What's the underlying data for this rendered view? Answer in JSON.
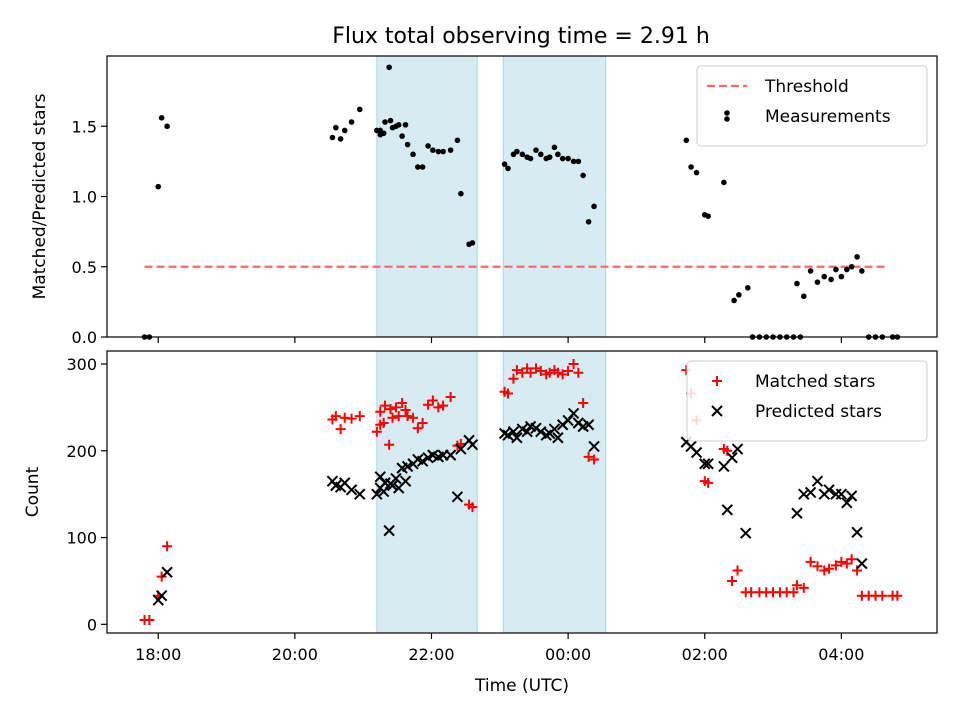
{
  "title": "Flux total observing time = 2.91 h",
  "chart_data": [
    {
      "type": "scatter",
      "ylabel": "Matched/Predicted stars",
      "xlabel": "",
      "x_unit": "hours since 00:00 UTC (date axis)",
      "xlim": [
        -6.75,
        5.4
      ],
      "ylim": [
        0,
        2.0
      ],
      "yticks": [
        0.0,
        0.5,
        1.0,
        1.5
      ],
      "ytick_labels": [
        "0.0",
        "0.5",
        "1.0",
        "1.5"
      ],
      "grid": false,
      "legend_position": "top-right",
      "shaded_ranges": [
        [
          -2.8,
          -1.33
        ],
        [
          -0.95,
          0.55
        ]
      ],
      "threshold": {
        "name": "Threshold",
        "value": 0.5,
        "x_range": [
          -6.2,
          4.65
        ],
        "color": "#f46d6d"
      },
      "series": [
        {
          "name": "Measurements",
          "color": "#000000",
          "points": [
            [
              -6.2,
              0.0
            ],
            [
              -6.13,
              0.0
            ],
            [
              -6.0,
              1.07
            ],
            [
              -5.95,
              1.56
            ],
            [
              -5.87,
              1.5
            ],
            [
              -3.45,
              1.42
            ],
            [
              -3.4,
              1.49
            ],
            [
              -3.33,
              1.41
            ],
            [
              -3.27,
              1.47
            ],
            [
              -3.17,
              1.53
            ],
            [
              -3.05,
              1.62
            ],
            [
              -2.8,
              1.47
            ],
            [
              -2.75,
              1.47
            ],
            [
              -2.7,
              1.45
            ],
            [
              -2.62,
              1.92
            ],
            [
              -2.57,
              1.49
            ],
            [
              -2.48,
              1.51
            ],
            [
              -2.38,
              1.51
            ],
            [
              -2.75,
              1.44
            ],
            [
              -2.68,
              1.53
            ],
            [
              -2.6,
              1.54
            ],
            [
              -2.52,
              1.5
            ],
            [
              -2.43,
              1.43
            ],
            [
              -2.35,
              1.37
            ],
            [
              -2.27,
              1.3
            ],
            [
              -2.2,
              1.21
            ],
            [
              -2.13,
              1.21
            ],
            [
              -2.05,
              1.36
            ],
            [
              -1.98,
              1.33
            ],
            [
              -1.9,
              1.32
            ],
            [
              -1.83,
              1.32
            ],
            [
              -1.72,
              1.33
            ],
            [
              -1.62,
              1.4
            ],
            [
              -1.57,
              1.02
            ],
            [
              -1.45,
              0.66
            ],
            [
              -1.4,
              0.67
            ],
            [
              -0.93,
              1.23
            ],
            [
              -0.88,
              1.2
            ],
            [
              -0.8,
              1.3
            ],
            [
              -0.75,
              1.32
            ],
            [
              -0.67,
              1.3
            ],
            [
              -0.6,
              1.28
            ],
            [
              -0.55,
              1.27
            ],
            [
              -0.47,
              1.33
            ],
            [
              -0.4,
              1.3
            ],
            [
              -0.32,
              1.27
            ],
            [
              -0.27,
              1.28
            ],
            [
              -0.2,
              1.35
            ],
            [
              -0.15,
              1.3
            ],
            [
              -0.08,
              1.27
            ],
            [
              0.0,
              1.27
            ],
            [
              0.08,
              1.25
            ],
            [
              0.15,
              1.25
            ],
            [
              0.22,
              1.15
            ],
            [
              0.3,
              0.82
            ],
            [
              0.38,
              0.93
            ],
            [
              1.73,
              1.4
            ],
            [
              1.8,
              1.21
            ],
            [
              1.88,
              1.17
            ],
            [
              2.0,
              0.87
            ],
            [
              2.05,
              0.86
            ],
            [
              2.28,
              1.1
            ],
            [
              2.43,
              0.26
            ],
            [
              2.5,
              0.3
            ],
            [
              2.63,
              0.35
            ],
            [
              2.7,
              0.0
            ],
            [
              2.8,
              0.0
            ],
            [
              2.9,
              0.0
            ],
            [
              3.0,
              0.0
            ],
            [
              3.1,
              0.0
            ],
            [
              3.2,
              0.0
            ],
            [
              3.3,
              0.0
            ],
            [
              3.4,
              0.0
            ],
            [
              3.35,
              0.38
            ],
            [
              3.45,
              0.29
            ],
            [
              3.55,
              0.47
            ],
            [
              3.65,
              0.39
            ],
            [
              3.75,
              0.43
            ],
            [
              3.85,
              0.41
            ],
            [
              3.92,
              0.48
            ],
            [
              4.0,
              0.43
            ],
            [
              4.08,
              0.48
            ],
            [
              4.15,
              0.5
            ],
            [
              4.23,
              0.57
            ],
            [
              4.3,
              0.47
            ],
            [
              4.4,
              0.0
            ],
            [
              4.5,
              0.0
            ],
            [
              4.6,
              0.0
            ],
            [
              4.75,
              0.0
            ],
            [
              4.82,
              0.0
            ]
          ]
        }
      ]
    },
    {
      "type": "scatter",
      "ylabel": "Count",
      "xlabel": "Time (UTC)",
      "x_unit": "hours since 00:00 UTC (date axis)",
      "xlim": [
        -6.75,
        5.4
      ],
      "ylim": [
        -10,
        315
      ],
      "yticks": [
        0,
        100,
        200,
        300
      ],
      "ytick_labels": [
        "0",
        "100",
        "200",
        "300"
      ],
      "xticks": [
        -6,
        -4,
        -2,
        0,
        2,
        4
      ],
      "xtick_labels": [
        "18:00",
        "20:00",
        "22:00",
        "00:00",
        "02:00",
        "04:00"
      ],
      "grid": false,
      "legend_position": "top-right",
      "shaded_ranges": [
        [
          -2.8,
          -1.33
        ],
        [
          -0.95,
          0.55
        ]
      ],
      "series": [
        {
          "name": "Matched stars",
          "marker": "plus",
          "color": "#ff0000",
          "points": [
            [
              -6.2,
              5
            ],
            [
              -6.13,
              5
            ],
            [
              -6.0,
              33
            ],
            [
              -5.95,
              55
            ],
            [
              -5.87,
              90
            ],
            [
              -3.45,
              236
            ],
            [
              -3.4,
              240
            ],
            [
              -3.33,
              225
            ],
            [
              -3.27,
              238
            ],
            [
              -3.17,
              237
            ],
            [
              -3.05,
              240
            ],
            [
              -2.8,
              222
            ],
            [
              -2.75,
              230
            ],
            [
              -2.7,
              232
            ],
            [
              -2.62,
              207
            ],
            [
              -2.57,
              238
            ],
            [
              -2.48,
              240
            ],
            [
              -2.38,
              247
            ],
            [
              -2.75,
              245
            ],
            [
              -2.68,
              252
            ],
            [
              -2.6,
              248
            ],
            [
              -2.52,
              250
            ],
            [
              -2.43,
              255
            ],
            [
              -2.35,
              240
            ],
            [
              -2.27,
              238
            ],
            [
              -2.2,
              226
            ],
            [
              -2.13,
              232
            ],
            [
              -2.05,
              253
            ],
            [
              -1.98,
              258
            ],
            [
              -1.9,
              250
            ],
            [
              -1.83,
              252
            ],
            [
              -1.72,
              262
            ],
            [
              -1.62,
              206
            ],
            [
              -1.57,
              208
            ],
            [
              -1.45,
              138
            ],
            [
              -1.4,
              135
            ],
            [
              -0.93,
              268
            ],
            [
              -0.88,
              266
            ],
            [
              -0.8,
              283
            ],
            [
              -0.75,
              293
            ],
            [
              -0.67,
              290
            ],
            [
              -0.6,
              295
            ],
            [
              -0.55,
              290
            ],
            [
              -0.47,
              295
            ],
            [
              -0.4,
              292
            ],
            [
              -0.32,
              288
            ],
            [
              -0.27,
              290
            ],
            [
              -0.2,
              293
            ],
            [
              -0.15,
              290
            ],
            [
              -0.08,
              288
            ],
            [
              0.0,
              292
            ],
            [
              0.08,
              300
            ],
            [
              0.15,
              290
            ],
            [
              0.22,
              255
            ],
            [
              0.3,
              193
            ],
            [
              0.38,
              190
            ],
            [
              1.73,
              293
            ],
            [
              1.8,
              266
            ],
            [
              1.88,
              235
            ],
            [
              2.0,
              165
            ],
            [
              2.05,
              163
            ],
            [
              2.28,
              202
            ],
            [
              2.33,
              200
            ],
            [
              2.4,
              50
            ],
            [
              2.48,
              62
            ],
            [
              2.6,
              37
            ],
            [
              2.68,
              37
            ],
            [
              2.8,
              37
            ],
            [
              2.9,
              37
            ],
            [
              3.0,
              37
            ],
            [
              3.1,
              37
            ],
            [
              3.2,
              37
            ],
            [
              3.3,
              37
            ],
            [
              3.35,
              45
            ],
            [
              3.45,
              42
            ],
            [
              3.55,
              72
            ],
            [
              3.65,
              67
            ],
            [
              3.75,
              62
            ],
            [
              3.82,
              64
            ],
            [
              3.92,
              68
            ],
            [
              4.0,
              72
            ],
            [
              4.08,
              70
            ],
            [
              4.15,
              75
            ],
            [
              4.23,
              62
            ],
            [
              4.3,
              33
            ],
            [
              4.4,
              33
            ],
            [
              4.5,
              33
            ],
            [
              4.6,
              33
            ],
            [
              4.75,
              33
            ],
            [
              4.82,
              33
            ]
          ]
        },
        {
          "name": "Predicted stars",
          "marker": "x",
          "color": "#000000",
          "points": [
            [
              -6.0,
              28
            ],
            [
              -5.95,
              33
            ],
            [
              -5.87,
              60
            ],
            [
              -3.45,
              165
            ],
            [
              -3.4,
              160
            ],
            [
              -3.33,
              158
            ],
            [
              -3.27,
              163
            ],
            [
              -3.17,
              155
            ],
            [
              -3.05,
              150
            ],
            [
              -2.8,
              150
            ],
            [
              -2.75,
              157
            ],
            [
              -2.7,
              153
            ],
            [
              -2.62,
              108
            ],
            [
              -2.57,
              160
            ],
            [
              -2.48,
              157
            ],
            [
              -2.38,
              165
            ],
            [
              -2.75,
              170
            ],
            [
              -2.68,
              163
            ],
            [
              -2.6,
              162
            ],
            [
              -2.52,
              168
            ],
            [
              -2.43,
              180
            ],
            [
              -2.35,
              182
            ],
            [
              -2.27,
              185
            ],
            [
              -2.2,
              190
            ],
            [
              -2.13,
              188
            ],
            [
              -2.05,
              192
            ],
            [
              -1.98,
              195
            ],
            [
              -1.9,
              193
            ],
            [
              -1.83,
              195
            ],
            [
              -1.72,
              195
            ],
            [
              -1.62,
              147
            ],
            [
              -1.57,
              202
            ],
            [
              -1.45,
              212
            ],
            [
              -1.4,
              207
            ],
            [
              -0.93,
              220
            ],
            [
              -0.88,
              218
            ],
            [
              -0.8,
              222
            ],
            [
              -0.75,
              215
            ],
            [
              -0.67,
              225
            ],
            [
              -0.6,
              222
            ],
            [
              -0.55,
              228
            ],
            [
              -0.47,
              226
            ],
            [
              -0.4,
              222
            ],
            [
              -0.32,
              218
            ],
            [
              -0.27,
              220
            ],
            [
              -0.2,
              225
            ],
            [
              -0.15,
              215
            ],
            [
              -0.08,
              230
            ],
            [
              0.0,
              235
            ],
            [
              0.08,
              243
            ],
            [
              0.15,
              232
            ],
            [
              0.22,
              228
            ],
            [
              0.3,
              230
            ],
            [
              0.38,
              205
            ],
            [
              1.73,
              210
            ],
            [
              1.8,
              205
            ],
            [
              1.88,
              198
            ],
            [
              2.0,
              185
            ],
            [
              2.05,
              185
            ],
            [
              2.28,
              182
            ],
            [
              2.33,
              132
            ],
            [
              2.4,
              192
            ],
            [
              2.48,
              202
            ],
            [
              2.6,
              105
            ],
            [
              3.35,
              128
            ],
            [
              3.45,
              150
            ],
            [
              3.55,
              152
            ],
            [
              3.65,
              165
            ],
            [
              3.75,
              150
            ],
            [
              3.82,
              155
            ],
            [
              3.92,
              150
            ],
            [
              4.0,
              150
            ],
            [
              4.08,
              140
            ],
            [
              4.15,
              148
            ],
            [
              4.23,
              106
            ],
            [
              4.3,
              70
            ]
          ]
        }
      ]
    }
  ]
}
